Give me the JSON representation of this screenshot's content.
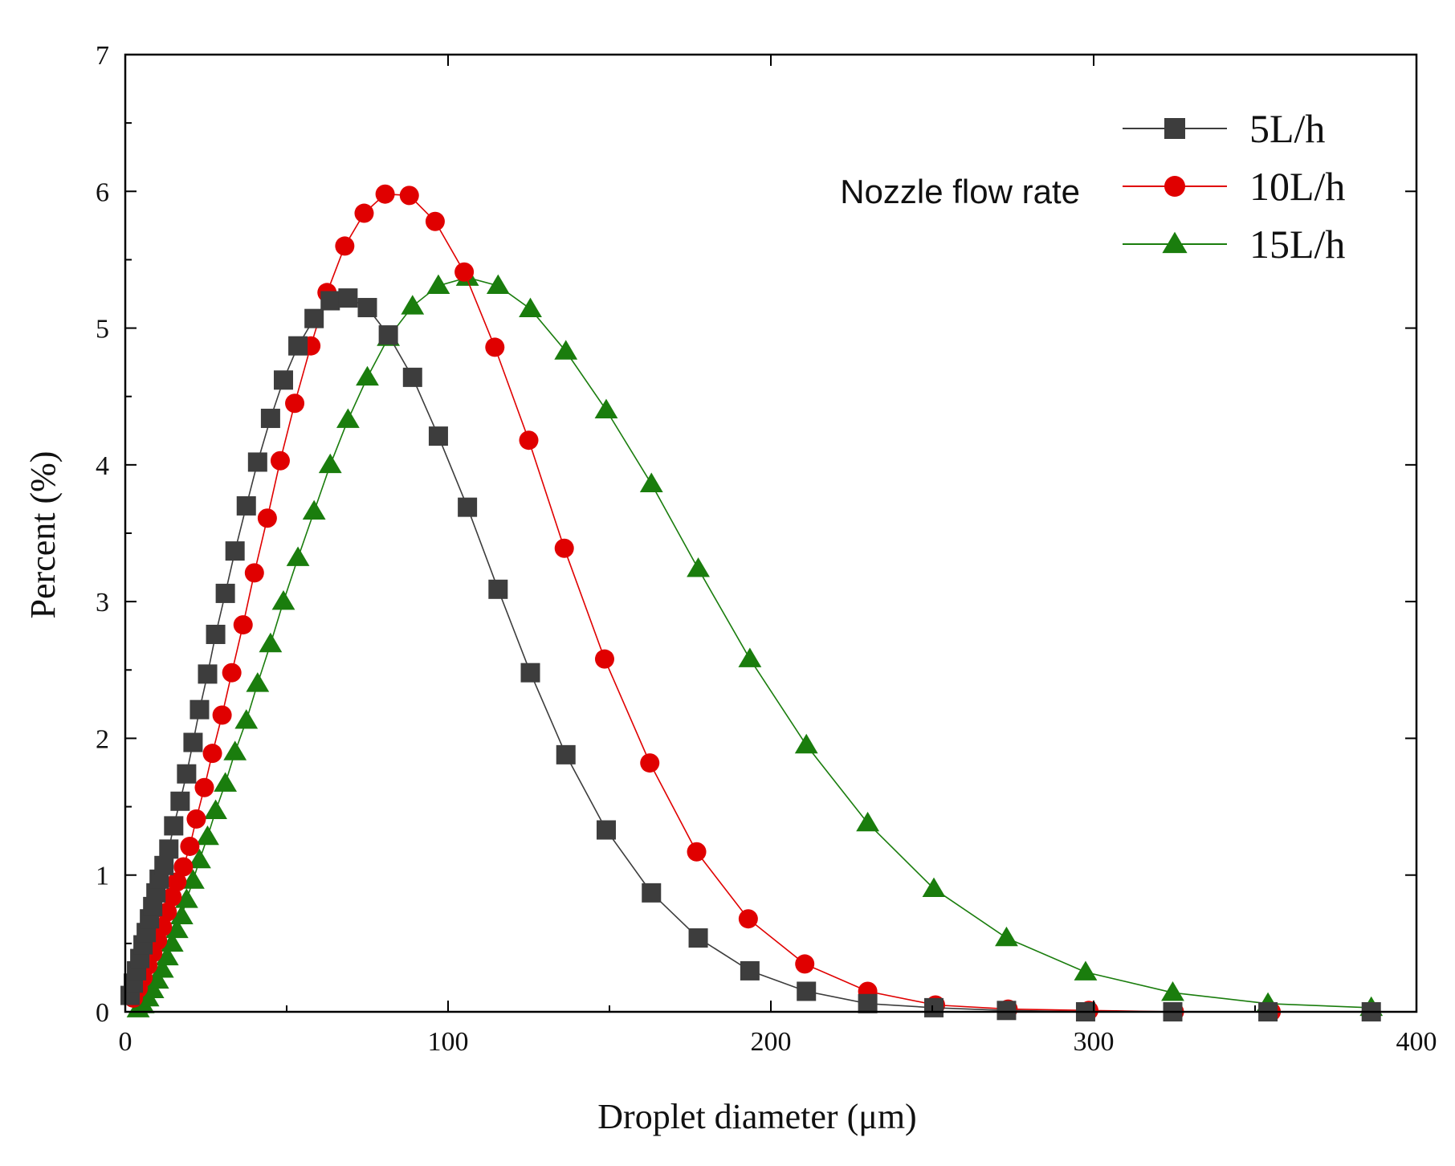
{
  "chart_data": {
    "type": "line",
    "title": "",
    "xlabel": "Droplet diameter (μm)",
    "ylabel": "Percent (%)",
    "xlim": [
      0,
      400
    ],
    "ylim": [
      0,
      7
    ],
    "xticks": [
      0,
      100,
      200,
      300,
      400
    ],
    "xtick_labels": [
      "0",
      "100",
      "200",
      "300",
      "400"
    ],
    "yticks": [
      0,
      1,
      2,
      3,
      4,
      5,
      6,
      7
    ],
    "ytick_labels": [
      "0",
      "1",
      "2",
      "3",
      "4",
      "5",
      "6",
      "7"
    ],
    "grid": false,
    "legend_position": "top-right",
    "legend_title": "Nozzle flow rate",
    "series": [
      {
        "name": "5L/h",
        "marker": "square",
        "color": "#3d3d3d",
        "x": [
          1.5,
          2.5,
          3.5,
          4.5,
          5.5,
          6.5,
          7.5,
          8.5,
          9.5,
          10.5,
          12,
          13.5,
          15,
          17,
          19,
          21,
          23,
          25.5,
          28,
          31,
          34,
          37.5,
          41,
          45,
          49,
          53.5,
          58.5,
          63.5,
          69,
          75,
          81.5,
          89,
          97,
          106,
          115.5,
          125.5,
          136.5,
          149,
          163,
          177.5,
          193.5,
          211,
          230,
          250.5,
          273,
          297.5,
          324.5,
          354,
          386
        ],
        "y": [
          0.12,
          0.21,
          0.3,
          0.39,
          0.49,
          0.58,
          0.68,
          0.77,
          0.87,
          0.97,
          1.07,
          1.19,
          1.36,
          1.54,
          1.74,
          1.97,
          2.21,
          2.47,
          2.76,
          3.06,
          3.37,
          3.7,
          4.02,
          4.34,
          4.62,
          4.87,
          5.07,
          5.2,
          5.22,
          5.15,
          4.95,
          4.64,
          4.21,
          3.69,
          3.09,
          2.48,
          1.88,
          1.33,
          0.87,
          0.54,
          0.3,
          0.15,
          0.06,
          0.03,
          0.01,
          0.0,
          0.0,
          0.0,
          0.0
        ]
      },
      {
        "name": "10L/h",
        "marker": "circle",
        "color": "#e00000",
        "x": [
          2.5,
          4,
          5.5,
          7,
          8.5,
          10,
          11.5,
          13,
          14.5,
          16,
          18,
          20,
          22,
          24.5,
          27,
          30,
          33,
          36.5,
          40,
          44,
          48,
          52.5,
          57.5,
          62.5,
          68,
          74,
          80.5,
          88,
          96,
          105,
          114.5,
          125,
          136,
          148.5,
          162.5,
          177,
          193,
          210.5,
          230,
          251,
          273.5,
          298.5,
          325,
          355,
          386
        ],
        "y": [
          0.1,
          0.17,
          0.25,
          0.34,
          0.43,
          0.52,
          0.62,
          0.73,
          0.84,
          0.95,
          1.06,
          1.21,
          1.41,
          1.64,
          1.89,
          2.17,
          2.48,
          2.83,
          3.21,
          3.61,
          4.03,
          4.45,
          4.87,
          5.26,
          5.6,
          5.84,
          5.98,
          5.97,
          5.78,
          5.41,
          4.86,
          4.18,
          3.39,
          2.58,
          1.82,
          1.17,
          0.68,
          0.35,
          0.15,
          0.05,
          0.02,
          0.01,
          0.0,
          0.0,
          0.0
        ]
      },
      {
        "name": "15L/h",
        "marker": "triangle",
        "color": "#1a7d0d",
        "x": [
          4,
          5.5,
          7,
          8.5,
          10,
          11.5,
          13,
          14.5,
          16,
          17.5,
          19,
          21,
          23,
          25.5,
          28,
          31,
          34,
          37.5,
          41,
          45,
          49,
          53.5,
          58.5,
          63.5,
          69,
          75,
          81.5,
          89,
          97,
          106,
          115.5,
          125.5,
          136.5,
          149,
          163,
          177.5,
          193.5,
          211,
          230,
          250.5,
          273,
          297.5,
          324.5,
          354,
          386
        ],
        "y": [
          0.02,
          0.05,
          0.1,
          0.16,
          0.23,
          0.31,
          0.4,
          0.5,
          0.6,
          0.7,
          0.82,
          0.96,
          1.11,
          1.28,
          1.47,
          1.67,
          1.9,
          2.13,
          2.4,
          2.69,
          3.0,
          3.32,
          3.66,
          4.0,
          4.33,
          4.64,
          4.93,
          5.16,
          5.31,
          5.37,
          5.31,
          5.14,
          4.83,
          4.4,
          3.86,
          3.24,
          2.58,
          1.95,
          1.38,
          0.9,
          0.54,
          0.29,
          0.14,
          0.06,
          0.03
        ]
      }
    ]
  }
}
